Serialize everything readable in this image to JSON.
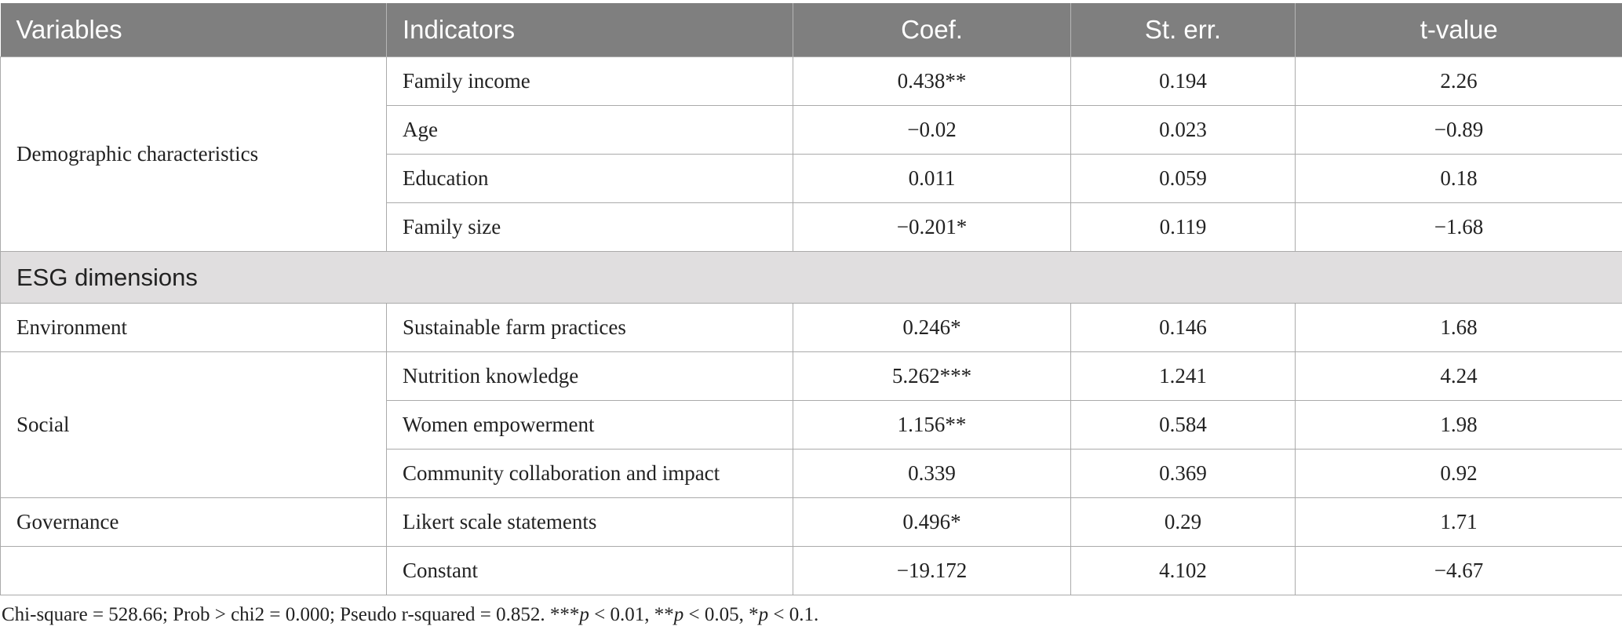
{
  "table": {
    "header": [
      "Variables",
      "Indicators",
      "Coef.",
      "St. err.",
      "t-value"
    ],
    "blocks": [
      {
        "variable": "Demographic characteristics",
        "rows": [
          [
            "Family income",
            "0.438**",
            "0.194",
            "2.26"
          ],
          [
            "Age",
            "−0.02",
            "0.023",
            "−0.89"
          ],
          [
            "Education",
            "0.011",
            "0.059",
            "0.18"
          ],
          [
            "Family size",
            "−0.201*",
            "0.119",
            "−1.68"
          ]
        ]
      },
      {
        "section": "ESG dimensions"
      },
      {
        "variable": "Environment",
        "rows": [
          [
            "Sustainable farm practices",
            "0.246*",
            "0.146",
            "1.68"
          ]
        ]
      },
      {
        "variable": "Social",
        "rows": [
          [
            "Nutrition knowledge",
            "5.262***",
            "1.241",
            "4.24"
          ],
          [
            "Women empowerment",
            "1.156**",
            "0.584",
            "1.98"
          ],
          [
            "Community collaboration and impact",
            "0.339",
            "0.369",
            "0.92"
          ]
        ]
      },
      {
        "variable": "Governance",
        "rows": [
          [
            "Likert scale statements",
            "0.496*",
            "0.29",
            "1.71"
          ]
        ]
      },
      {
        "rows": [
          [
            "Constant",
            "−19.172",
            "4.102",
            "−4.67"
          ]
        ]
      }
    ]
  },
  "footnote": [
    "Chi-square = 528.66; Prob > chi2 = 0.000; Pseudo r-squared = 0.852. ***",
    "p",
    " < 0.01, **",
    "p",
    " < 0.05, *",
    "p",
    " < 0.1."
  ]
}
